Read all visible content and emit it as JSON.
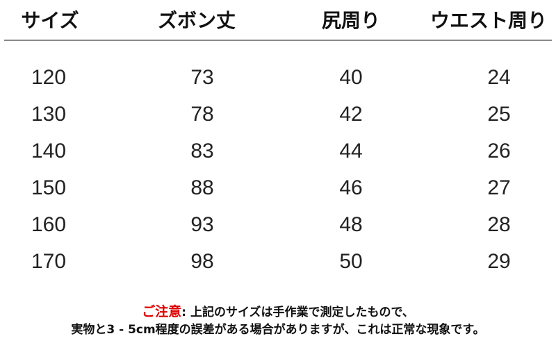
{
  "table": {
    "headers": [
      "サイズ",
      "ズボン丈",
      "尻周り",
      "ウエスト周り"
    ],
    "rows": [
      [
        "120",
        "73",
        "40",
        "24"
      ],
      [
        "130",
        "78",
        "42",
        "25"
      ],
      [
        "140",
        "83",
        "44",
        "26"
      ],
      [
        "150",
        "88",
        "46",
        "27"
      ],
      [
        "160",
        "93",
        "48",
        "28"
      ],
      [
        "170",
        "98",
        "50",
        "29"
      ]
    ]
  },
  "note": {
    "label": "ご注意",
    "line1": ": 上記のサイズは手作業で測定したもので、",
    "line2": "実物と3 - 5cm程度の誤差がある場合がありますが、これは正常な現象です。",
    "label_color": "#e00000"
  }
}
